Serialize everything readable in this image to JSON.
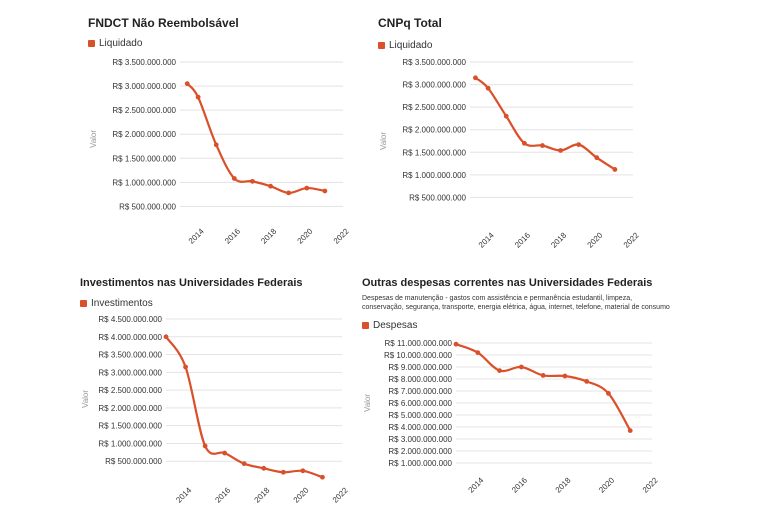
{
  "colors": {
    "series": "#d9502a",
    "grid": "#e3e3e3",
    "tick_text": "#333333",
    "axis_label": "#9a9a9a"
  },
  "chart_data": [
    {
      "type": "line",
      "title": "FNDCT Não Reembolsável",
      "subtitle": "",
      "ylabel": "Valor",
      "series": [
        {
          "name": "Liquidado",
          "x": [
            2013.4,
            2014,
            2015,
            2016,
            2017,
            2018,
            2019,
            2020,
            2021
          ],
          "values": [
            3050000000,
            2770000000,
            1780000000,
            1080000000,
            1020000000,
            920000000,
            780000000,
            880000000,
            820000000
          ]
        }
      ],
      "y_ticks": [
        500000000,
        1000000000,
        1500000000,
        2000000000,
        2500000000,
        3000000000,
        3500000000
      ],
      "y_tick_labels": [
        "R$ 500.000.000",
        "R$ 1.000.000.000",
        "R$ 1.500.000.000",
        "R$ 2.000.000.000",
        "R$ 2.500.000.000",
        "R$ 3.000.000.000",
        "R$ 3.500.000.000"
      ],
      "x_ticks": [
        2014,
        2016,
        2018,
        2020,
        2022
      ],
      "x_tick_labels": [
        "2014",
        "2016",
        "2018",
        "2020",
        "2022"
      ],
      "xlim": [
        2013,
        2022
      ],
      "ylim": [
        300000000,
        3500000000
      ],
      "grid": true,
      "legend_position": "top-left"
    },
    {
      "type": "line",
      "title": "CNPq Total",
      "subtitle": "",
      "ylabel": "Valor",
      "series": [
        {
          "name": "Liquidado",
          "x": [
            2013.3,
            2014,
            2015,
            2016,
            2017,
            2018,
            2019,
            2020,
            2021
          ],
          "values": [
            3150000000,
            2920000000,
            2300000000,
            1700000000,
            1650000000,
            1540000000,
            1670000000,
            1380000000,
            1120000000
          ]
        }
      ],
      "y_ticks": [
        500000000,
        1000000000,
        1500000000,
        2000000000,
        2500000000,
        3000000000,
        3500000000
      ],
      "y_tick_labels": [
        "R$ 500.000.000",
        "R$ 1.000.000.000",
        "R$ 1.500.000.000",
        "R$ 2.000.000.000",
        "R$ 2.500.000.000",
        "R$ 3.000.000.000",
        "R$ 3.500.000.000"
      ],
      "x_ticks": [
        2014,
        2016,
        2018,
        2020,
        2022
      ],
      "x_tick_labels": [
        "2014",
        "2016",
        "2018",
        "2020",
        "2022"
      ],
      "xlim": [
        2013,
        2022
      ],
      "ylim": [
        0,
        3500000000
      ],
      "grid": true,
      "legend_position": "top-left"
    },
    {
      "type": "line",
      "title": "Investimentos nas Universidades Federais",
      "subtitle": "",
      "ylabel": "Valor",
      "series": [
        {
          "name": "Investimentos",
          "x": [
            2013,
            2014,
            2015,
            2016,
            2017,
            2018,
            2019,
            2020,
            2021
          ],
          "values": [
            4000000000,
            3150000000,
            930000000,
            730000000,
            430000000,
            300000000,
            190000000,
            230000000,
            50000000
          ]
        }
      ],
      "y_ticks": [
        500000000,
        1000000000,
        1500000000,
        2000000000,
        2500000000,
        3000000000,
        3500000000,
        4000000000,
        4500000000
      ],
      "y_tick_labels": [
        "R$ 500.000.000",
        "R$ 1.000.000.000",
        "R$ 1.500.000.000",
        "R$ 2.000.000.000",
        "R$ 2.500.000.000",
        "R$ 3.000.000.000",
        "R$ 3.500.000.000",
        "R$ 4.000.000.000",
        "R$ 4.500.000.000"
      ],
      "x_ticks": [
        2014,
        2016,
        2018,
        2020,
        2022
      ],
      "x_tick_labels": [
        "2014",
        "2016",
        "2018",
        "2020",
        "2022"
      ],
      "xlim": [
        2013,
        2022
      ],
      "ylim": [
        0,
        4500000000
      ],
      "grid": true,
      "legend_position": "top-left"
    },
    {
      "type": "line",
      "title": "Outras despesas correntes nas Universidades Federais",
      "subtitle": "Despesas de manutenção - gastos com assistência e permanência estudantil, limpeza, conservação, segurança, transporte, energia elétrica, água, internet, telefone, material de consumo",
      "ylabel": "Valor",
      "series": [
        {
          "name": "Despesas",
          "x": [
            2013,
            2014,
            2015,
            2016,
            2017,
            2018,
            2019,
            2020,
            2021
          ],
          "values": [
            10900000000,
            10200000000,
            8700000000,
            9000000000,
            8300000000,
            8250000000,
            7800000000,
            6800000000,
            3700000000
          ]
        }
      ],
      "y_ticks": [
        1000000000,
        2000000000,
        3000000000,
        4000000000,
        5000000000,
        6000000000,
        7000000000,
        8000000000,
        9000000000,
        10000000000,
        11000000000
      ],
      "y_tick_labels": [
        "R$ 1.000.000.000",
        "R$ 2.000.000.000",
        "R$ 3.000.000.000",
        "R$ 4.000.000.000",
        "R$ 5.000.000.000",
        "R$ 6.000.000.000",
        "R$ 7.000.000.000",
        "R$ 8.000.000.000",
        "R$ 9.000.000.000",
        "R$ 10.000.000.000",
        "R$ 11.000.000.000"
      ],
      "x_ticks": [
        2014,
        2016,
        2018,
        2020,
        2022
      ],
      "x_tick_labels": [
        "2014",
        "2016",
        "2018",
        "2020",
        "2022"
      ],
      "xlim": [
        2013,
        2022
      ],
      "ylim": [
        1000000000,
        11000000000
      ],
      "grid": true,
      "legend_position": "top-left"
    }
  ]
}
